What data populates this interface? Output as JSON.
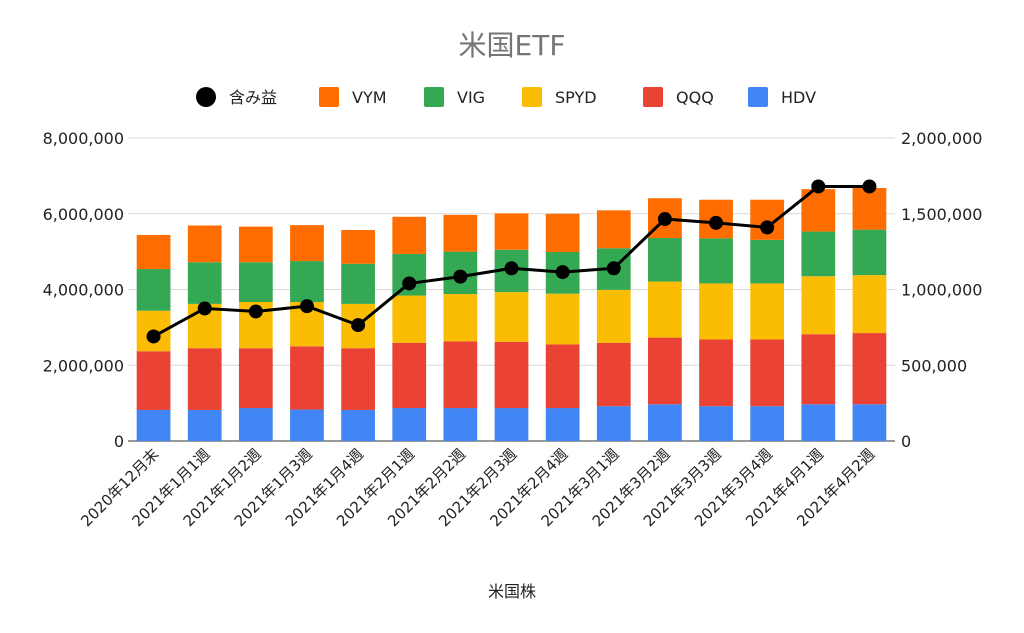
{
  "chart_data": {
    "type": "bar",
    "title": "米国ETF",
    "xlabel": "米国株",
    "categories": [
      "2020年12月末",
      "2021年1月1週",
      "2021年1月2週",
      "2021年1月3週",
      "2021年1月4週",
      "2021年2月1週",
      "2021年2月2週",
      "2021年2月3週",
      "2021年2月4週",
      "2021年3月1週",
      "2021年3月2週",
      "2021年3月3週",
      "2021年3月4週",
      "2021年4月1週",
      "2021年4月2週"
    ],
    "stacked": true,
    "ylim": [
      0,
      8000000
    ],
    "yticks": [
      "0",
      "2,000,000",
      "4,000,000",
      "6,000,000",
      "8,000,000"
    ],
    "y2lim": [
      0,
      2000000
    ],
    "y2ticks": [
      "0",
      "500,000",
      "1,000,000",
      "1,500,000",
      "2,000,000"
    ],
    "legend_position": "top",
    "grid": true,
    "series": [
      {
        "name": "HDV",
        "color": "#4285f4",
        "values": [
          820000,
          820000,
          870000,
          830000,
          820000,
          870000,
          870000,
          870000,
          870000,
          920000,
          970000,
          920000,
          920000,
          970000,
          970000
        ]
      },
      {
        "name": "QQQ",
        "color": "#ea4335",
        "values": [
          1550000,
          1630000,
          1580000,
          1670000,
          1630000,
          1720000,
          1760000,
          1750000,
          1680000,
          1670000,
          1760000,
          1760000,
          1760000,
          1850000,
          1880000
        ]
      },
      {
        "name": "SPYD",
        "color": "#fbbc04",
        "values": [
          1070000,
          1170000,
          1220000,
          1170000,
          1170000,
          1250000,
          1250000,
          1310000,
          1340000,
          1400000,
          1480000,
          1480000,
          1480000,
          1530000,
          1530000
        ]
      },
      {
        "name": "VIG",
        "color": "#34a853",
        "values": [
          1100000,
          1100000,
          1050000,
          1080000,
          1060000,
          1100000,
          1120000,
          1120000,
          1100000,
          1100000,
          1150000,
          1190000,
          1150000,
          1180000,
          1200000
        ]
      },
      {
        "name": "VYM",
        "color": "#ff6d01",
        "values": [
          900000,
          970000,
          940000,
          950000,
          890000,
          980000,
          970000,
          960000,
          1010000,
          1000000,
          1050000,
          1020000,
          1060000,
          1120000,
          1100000
        ]
      }
    ],
    "line_series": {
      "name": "含み益",
      "axis": "right",
      "color": "#000000",
      "values": [
        690000,
        875000,
        855000,
        890000,
        765000,
        1040000,
        1085000,
        1140000,
        1115000,
        1140000,
        1465000,
        1440000,
        1410000,
        1680000,
        1680000
      ]
    },
    "legend": [
      "含み益",
      "VYM",
      "VIG",
      "SPYD",
      "QQQ",
      "HDV"
    ]
  }
}
